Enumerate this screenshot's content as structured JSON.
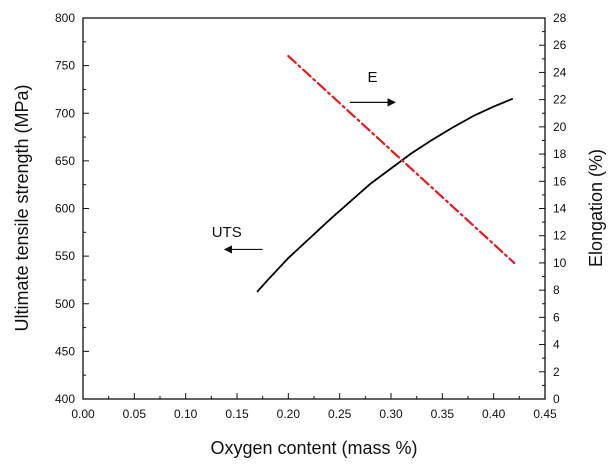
{
  "chart_data": {
    "type": "line",
    "title": "",
    "xlabel": "Oxygen content (mass %)",
    "ylabel_left": "Ultimate tensile strength (MPa)",
    "ylabel_right": "Elongation (%)",
    "xlim": [
      0.0,
      0.45
    ],
    "ylim_left": [
      400,
      800
    ],
    "ylim_right": [
      0,
      28
    ],
    "grid": false,
    "x_ticks": [
      "0.00",
      "0.05",
      "0.10",
      "0.15",
      "0.20",
      "0.25",
      "0.30",
      "0.35",
      "0.40",
      "0.45"
    ],
    "y_ticks_left": [
      "400",
      "450",
      "500",
      "550",
      "600",
      "650",
      "700",
      "750",
      "800"
    ],
    "y_ticks_right": [
      "0",
      "2",
      "4",
      "6",
      "8",
      "10",
      "12",
      "14",
      "16",
      "18",
      "20",
      "22",
      "24",
      "26",
      "28"
    ],
    "series": [
      {
        "name": "UTS",
        "axis": "left",
        "color": "#000000",
        "line_style": "solid",
        "x": [
          0.17,
          0.18,
          0.2,
          0.22,
          0.24,
          0.26,
          0.28,
          0.3,
          0.32,
          0.34,
          0.36,
          0.38,
          0.4,
          0.418
        ],
        "y": [
          513,
          525,
          548,
          568,
          588,
          607,
          626,
          642,
          658,
          672,
          685,
          697,
          707,
          715
        ]
      },
      {
        "name": "E",
        "axis": "right",
        "color": "#e41a1c",
        "line_style": "dash-dot",
        "x": [
          0.2,
          0.42
        ],
        "y": [
          25.2,
          10.0
        ]
      }
    ],
    "annotations": [
      {
        "text": "UTS",
        "x": 0.14,
        "y": 570,
        "axis": "left",
        "arrow": {
          "x_from": 0.175,
          "x_to": 0.138,
          "y": 557
        }
      },
      {
        "text": "E",
        "x": 0.282,
        "y": 23.3,
        "axis": "right",
        "arrow": {
          "x_from": 0.26,
          "x_to": 0.304,
          "y": 21.8
        }
      }
    ]
  }
}
